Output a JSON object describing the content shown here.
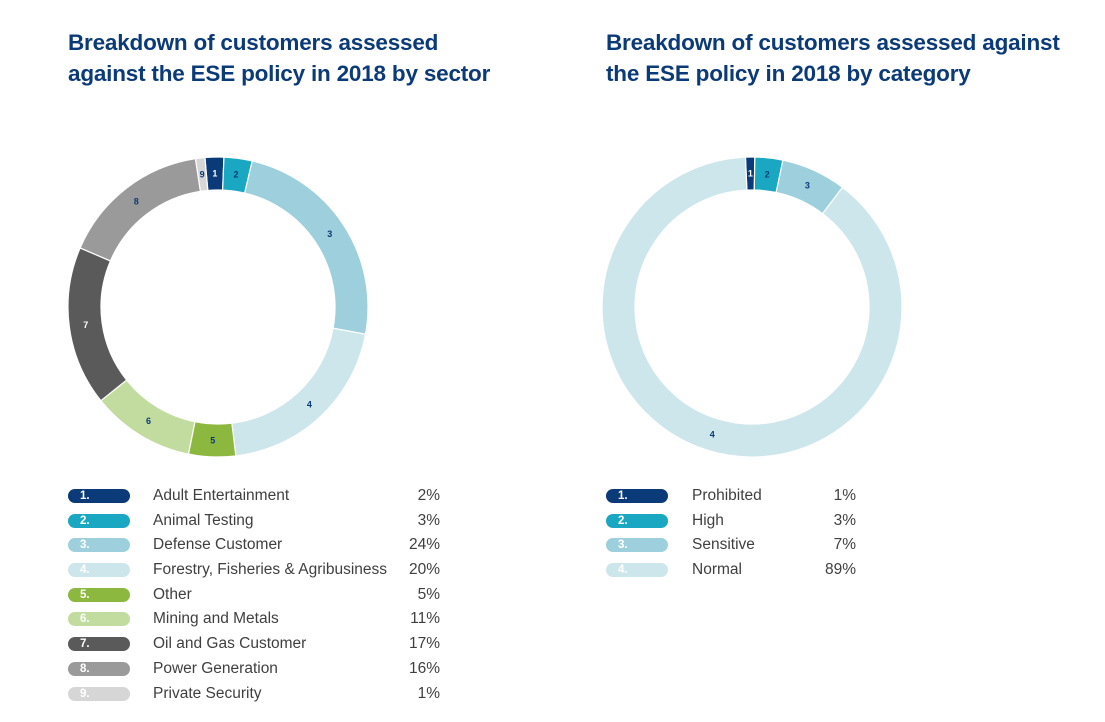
{
  "chart_data": [
    {
      "type": "pie",
      "title": "Breakdown of customers assessed against the ESE policy in 2018 by sector",
      "title_lines": [
        "Breakdown of customers assessed",
        "against the ESE policy in 2018 by sector"
      ],
      "unit": "%",
      "categories": [
        "Adult Entertainment",
        "Animal Testing",
        "Defense Customer",
        "Forestry, Fisheries & Agribusiness",
        "Other",
        "Mining and Metals",
        "Oil and Gas Customer",
        "Power Generation",
        "Private Security"
      ],
      "values": [
        2,
        3,
        24,
        20,
        5,
        11,
        17,
        16,
        1
      ],
      "segment_order": [
        1,
        2,
        3,
        4,
        5,
        6,
        7,
        8,
        9
      ],
      "colors": [
        "#0b3a78",
        "#1aa7c2",
        "#9dd0dc",
        "#cde6ec",
        "#8db83f",
        "#c2dca0",
        "#5a5a5a",
        "#9a9a9a",
        "#d6d6d6"
      ],
      "legend": [
        {
          "num": "1.",
          "label": "Adult Entertainment",
          "value": "2%"
        },
        {
          "num": "2.",
          "label": "Animal Testing",
          "value": "3%"
        },
        {
          "num": "3.",
          "label": "Defense Customer",
          "value": "24%"
        },
        {
          "num": "4.",
          "label": "Forestry, Fisheries & Agribusiness",
          "value": "20%"
        },
        {
          "num": "5.",
          "label": "Other",
          "value": "5%"
        },
        {
          "num": "6.",
          "label": "Mining and Metals",
          "value": "11%"
        },
        {
          "num": "7.",
          "label": "Oil and Gas Customer",
          "value": "17%"
        },
        {
          "num": "8.",
          "label": "Power Generation",
          "value": "16%"
        },
        {
          "num": "9.",
          "label": "Private Security",
          "value": "1%"
        }
      ]
    },
    {
      "type": "pie",
      "title": "Breakdown of customers assessed against the ESE policy in 2018 by category",
      "title_lines": [
        "Breakdown of customers assessed against",
        "the ESE policy in 2018 by category"
      ],
      "unit": "%",
      "categories": [
        "Prohibited",
        "High",
        "Sensitive",
        "Normal"
      ],
      "values": [
        1,
        3,
        7,
        89
      ],
      "segment_order": [
        1,
        2,
        3,
        4
      ],
      "colors": [
        "#0b3a78",
        "#1aa7c2",
        "#9dd0dc",
        "#cde6ec"
      ],
      "legend": [
        {
          "num": "1.",
          "label": "Prohibited",
          "value": "1%"
        },
        {
          "num": "2.",
          "label": "High",
          "value": "3%"
        },
        {
          "num": "3.",
          "label": "Sensitive",
          "value": "7%"
        },
        {
          "num": "4.",
          "label": "Normal",
          "value": "89%"
        }
      ]
    }
  ]
}
